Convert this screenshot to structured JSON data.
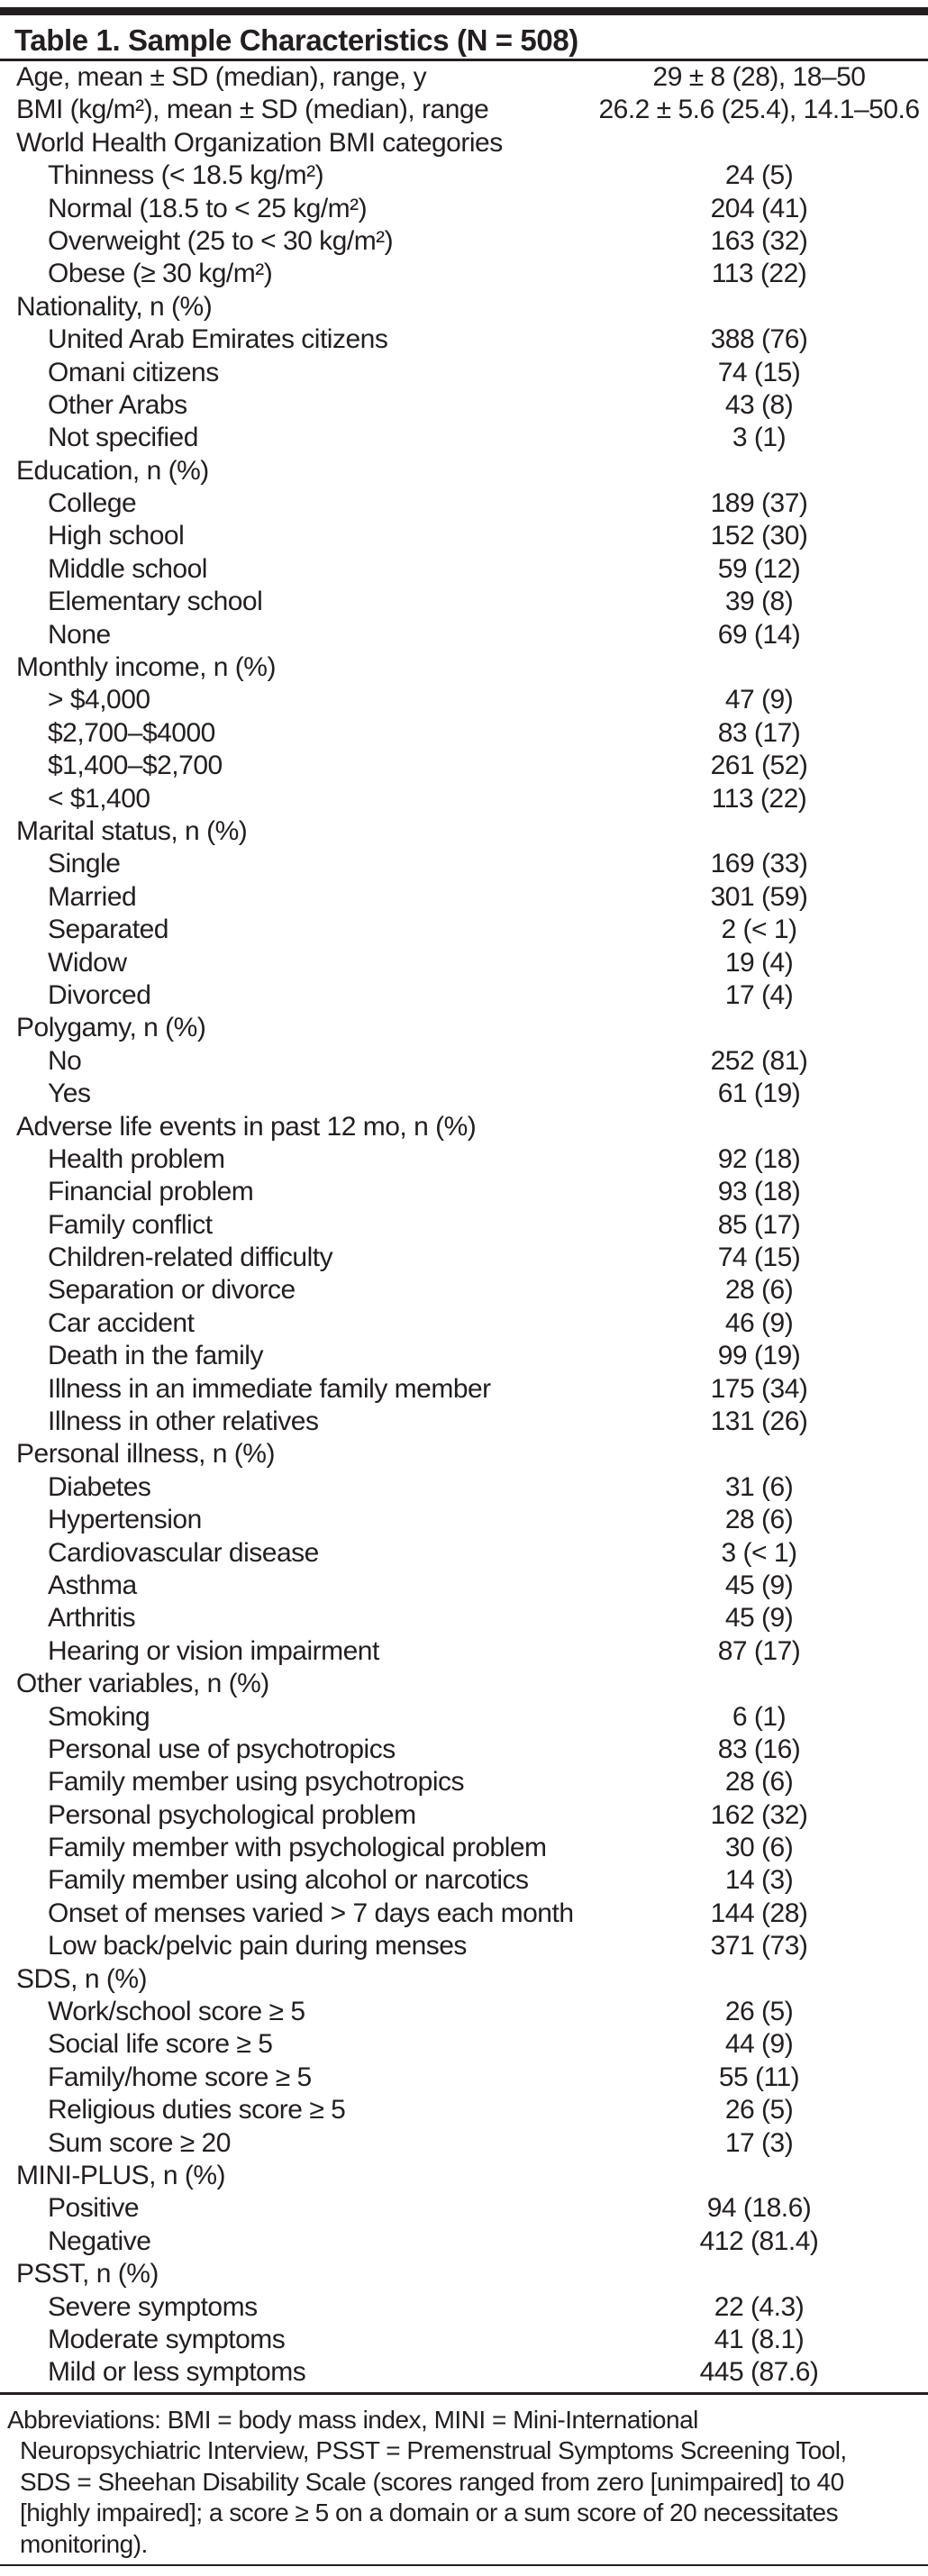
{
  "colors": {
    "text": "#231f20",
    "background": "#ffffff",
    "rule": "#231f20"
  },
  "table": {
    "title": "Table 1. Sample Characteristics (N = 508)",
    "rows": [
      {
        "label": "Age, mean ± SD (median), range, y",
        "value": "29 ± 8 (28), 18–50",
        "indent": 0
      },
      {
        "label": "BMI (kg/m²), mean ± SD (median), range",
        "value": "26.2 ± 5.6 (25.4), 14.1–50.6",
        "indent": 0
      },
      {
        "label": "World Health Organization BMI categories",
        "value": "",
        "indent": 0
      },
      {
        "label": "Thinness (< 18.5 kg/m²)",
        "value": "24 (5)",
        "indent": 1
      },
      {
        "label": "Normal (18.5 to < 25 kg/m²)",
        "value": "204 (41)",
        "indent": 1
      },
      {
        "label": "Overweight (25 to < 30 kg/m²)",
        "value": "163 (32)",
        "indent": 1
      },
      {
        "label": "Obese (≥ 30 kg/m²)",
        "value": "113 (22)",
        "indent": 1
      },
      {
        "label": "Nationality, n (%)",
        "value": "",
        "indent": 0
      },
      {
        "label": "United Arab Emirates citizens",
        "value": "388 (76)",
        "indent": 1
      },
      {
        "label": "Omani citizens",
        "value": "74 (15)",
        "indent": 1
      },
      {
        "label": "Other Arabs",
        "value": "43 (8)",
        "indent": 1
      },
      {
        "label": "Not specified",
        "value": "3 (1)",
        "indent": 1
      },
      {
        "label": "Education, n (%)",
        "value": "",
        "indent": 0
      },
      {
        "label": "College",
        "value": "189 (37)",
        "indent": 1
      },
      {
        "label": "High school",
        "value": "152 (30)",
        "indent": 1
      },
      {
        "label": "Middle school",
        "value": "59 (12)",
        "indent": 1
      },
      {
        "label": "Elementary school",
        "value": "39 (8)",
        "indent": 1
      },
      {
        "label": "None",
        "value": "69 (14)",
        "indent": 1
      },
      {
        "label": "Monthly income, n (%)",
        "value": "",
        "indent": 0
      },
      {
        "label": "> $4,000",
        "value": "47 (9)",
        "indent": 1
      },
      {
        "label": "$2,700–$4000",
        "value": "83 (17)",
        "indent": 1
      },
      {
        "label": "$1,400–$2,700",
        "value": "261 (52)",
        "indent": 1
      },
      {
        "label": "< $1,400",
        "value": "113 (22)",
        "indent": 1
      },
      {
        "label": "Marital status, n (%)",
        "value": "",
        "indent": 0
      },
      {
        "label": "Single",
        "value": "169 (33)",
        "indent": 1
      },
      {
        "label": "Married",
        "value": "301 (59)",
        "indent": 1
      },
      {
        "label": "Separated",
        "value": "2 (< 1)",
        "indent": 1
      },
      {
        "label": "Widow",
        "value": "19 (4)",
        "indent": 1
      },
      {
        "label": "Divorced",
        "value": "17 (4)",
        "indent": 1
      },
      {
        "label": "Polygamy, n (%)",
        "value": "",
        "indent": 0
      },
      {
        "label": "No",
        "value": "252 (81)",
        "indent": 1
      },
      {
        "label": "Yes",
        "value": "61 (19)",
        "indent": 1
      },
      {
        "label": "Adverse life events in past 12 mo, n (%)",
        "value": "",
        "indent": 0
      },
      {
        "label": "Health problem",
        "value": "92 (18)",
        "indent": 1
      },
      {
        "label": "Financial problem",
        "value": "93 (18)",
        "indent": 1
      },
      {
        "label": "Family conflict",
        "value": "85 (17)",
        "indent": 1
      },
      {
        "label": "Children-related difficulty",
        "value": "74 (15)",
        "indent": 1
      },
      {
        "label": "Separation or divorce",
        "value": "28 (6)",
        "indent": 1
      },
      {
        "label": "Car accident",
        "value": "46 (9)",
        "indent": 1
      },
      {
        "label": "Death in the family",
        "value": "99 (19)",
        "indent": 1
      },
      {
        "label": "Illness in an immediate family member",
        "value": "175 (34)",
        "indent": 1
      },
      {
        "label": "Illness in other relatives",
        "value": "131 (26)",
        "indent": 1
      },
      {
        "label": "Personal illness, n (%)",
        "value": "",
        "indent": 0
      },
      {
        "label": "Diabetes",
        "value": "31 (6)",
        "indent": 1
      },
      {
        "label": "Hypertension",
        "value": "28 (6)",
        "indent": 1
      },
      {
        "label": "Cardiovascular disease",
        "value": "3 (< 1)",
        "indent": 1
      },
      {
        "label": "Asthma",
        "value": "45 (9)",
        "indent": 1
      },
      {
        "label": "Arthritis",
        "value": "45 (9)",
        "indent": 1
      },
      {
        "label": "Hearing or vision impairment",
        "value": "87 (17)",
        "indent": 1
      },
      {
        "label": "Other variables, n (%)",
        "value": "",
        "indent": 0
      },
      {
        "label": "Smoking",
        "value": "6 (1)",
        "indent": 1
      },
      {
        "label": "Personal use of psychotropics",
        "value": "83 (16)",
        "indent": 1
      },
      {
        "label": "Family member using psychotropics",
        "value": "28 (6)",
        "indent": 1
      },
      {
        "label": "Personal psychological problem",
        "value": "162 (32)",
        "indent": 1
      },
      {
        "label": "Family member with psychological problem",
        "value": "30 (6)",
        "indent": 1
      },
      {
        "label": "Family member using alcohol or narcotics",
        "value": "14 (3)",
        "indent": 1
      },
      {
        "label": "Onset of menses varied > 7 days each month",
        "value": "144 (28)",
        "indent": 1
      },
      {
        "label": "Low back/pelvic pain during menses",
        "value": "371 (73)",
        "indent": 1
      },
      {
        "label": "SDS, n (%)",
        "value": "",
        "indent": 0
      },
      {
        "label": "Work/school score ≥ 5",
        "value": "26 (5)",
        "indent": 1
      },
      {
        "label": "Social life score ≥ 5",
        "value": "44 (9)",
        "indent": 1
      },
      {
        "label": "Family/home score ≥ 5",
        "value": "55 (11)",
        "indent": 1
      },
      {
        "label": "Religious duties score ≥ 5",
        "value": "26 (5)",
        "indent": 1
      },
      {
        "label": "Sum score ≥ 20",
        "value": "17 (3)",
        "indent": 1
      },
      {
        "label": "MINI-PLUS, n (%)",
        "value": "",
        "indent": 0
      },
      {
        "label": "Positive",
        "value": "94 (18.6)",
        "indent": 1
      },
      {
        "label": "Negative",
        "value": "412 (81.4)",
        "indent": 1
      },
      {
        "label": "PSST, n (%)",
        "value": "",
        "indent": 0
      },
      {
        "label": "Severe symptoms",
        "value": "22 (4.3)",
        "indent": 1
      },
      {
        "label": "Moderate symptoms",
        "value": "41 (8.1)",
        "indent": 1
      },
      {
        "label": "Mild or less symptoms",
        "value": "445 (87.6)",
        "indent": 1
      }
    ],
    "footnote_lines": [
      "Abbreviations: BMI = body mass index, MINI = Mini-International",
      "Neuropsychiatric Interview, PSST = Premenstrual Symptoms Screening Tool,",
      "SDS = Sheehan Disability Scale (scores ranged from zero [unimpaired] to 40",
      "[highly impaired]; a score ≥ 5 on a domain or a sum score of 20 necessitates",
      "monitoring)."
    ]
  }
}
